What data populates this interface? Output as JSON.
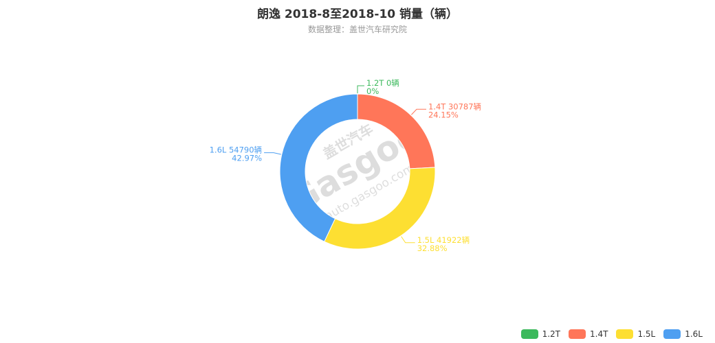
{
  "header": {
    "title": "朗逸 2018-8至2018-10 销量（辆）",
    "subtitle": "数据整理：盖世汽车研究院"
  },
  "watermark": {
    "brand": "盖世汽车",
    "logo_text": "Gasgoo",
    "url": "auto.gasgoo.com"
  },
  "chart_data": {
    "type": "pie",
    "variant": "donut",
    "title": "朗逸 2018-8至2018-10 销量（辆）",
    "subtitle": "数据整理：盖世汽车研究院",
    "unit": "辆",
    "legend_position": "bottom-right",
    "slices": [
      {
        "name": "1.2T",
        "value": 0,
        "percent": "0%",
        "label": "1.2T 0辆",
        "color": "#3cb95c"
      },
      {
        "name": "1.4T",
        "value": 30787,
        "percent": "24.15%",
        "label": "1.4T 30787辆",
        "color": "#ff7659"
      },
      {
        "name": "1.5L",
        "value": 41922,
        "percent": "32.88%",
        "label": "1.5L 41922辆",
        "color": "#fddf32"
      },
      {
        "name": "1.6L",
        "value": 54790,
        "percent": "42.97%",
        "label": "1.6L 54790辆",
        "color": "#4e9ff1"
      }
    ]
  }
}
